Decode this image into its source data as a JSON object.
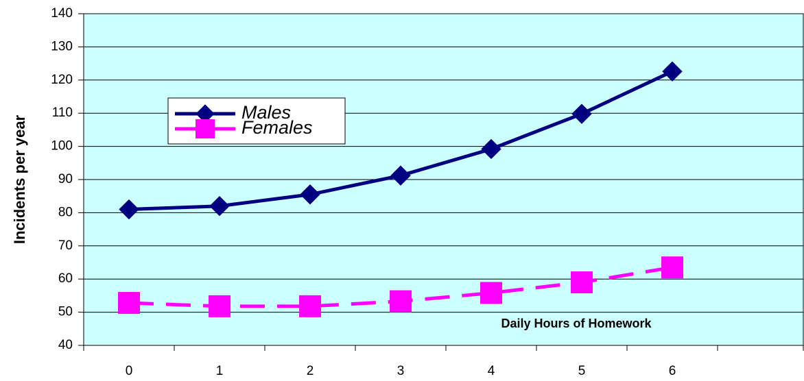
{
  "chart_data": {
    "type": "line",
    "x_label": "Daily Hours of Homework",
    "y_label": "Incidents per year",
    "categories": [
      "0",
      "1",
      "2",
      "3",
      "4",
      "5",
      "6",
      null
    ],
    "series": [
      {
        "name": "Males",
        "color": "#000080",
        "marker": "diamond",
        "dash": false,
        "values": [
          81,
          82,
          85.5,
          91.2,
          99.2,
          109.8,
          122.6,
          null
        ]
      },
      {
        "name": "Females",
        "color": "#ff00ff",
        "marker": "square",
        "dash": true,
        "values": [
          52.8,
          51.8,
          51.8,
          53.3,
          55.8,
          59,
          63.5,
          null
        ]
      }
    ],
    "ylim": [
      40,
      140
    ],
    "yticks": [
      40,
      50,
      60,
      70,
      80,
      90,
      100,
      110,
      120,
      130,
      140
    ],
    "grid": true,
    "legend": "upper left",
    "background": "#ccffff"
  }
}
